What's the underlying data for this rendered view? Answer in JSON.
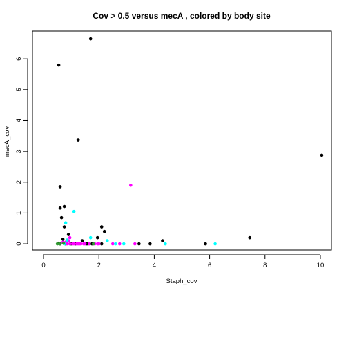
{
  "chart_data": {
    "type": "scatter",
    "title": "Cov > 0.5 versus mecA , colored by body site",
    "xlabel": "Staph_cov",
    "ylabel": "mecA_cov",
    "xlim": [
      -0.4,
      10.4
    ],
    "ylim": [
      -0.2,
      6.9
    ],
    "xticks": [
      0,
      2,
      4,
      6,
      8,
      10
    ],
    "yticks": [
      0,
      1,
      2,
      3,
      4,
      5,
      6
    ],
    "xtick_labels": [
      "0",
      "2",
      "4",
      "6",
      "8",
      "10"
    ],
    "ytick_labels": [
      "0",
      "1",
      "2",
      "3",
      "4",
      "5",
      "6"
    ],
    "grid": false,
    "colors": {
      "black": "#000000",
      "magenta": "#ff00ff",
      "cyan": "#00ffff",
      "green": "#339933"
    },
    "series": [
      {
        "color": "#000000",
        "points": [
          [
            1.7,
            6.65
          ],
          [
            0.55,
            5.8
          ],
          [
            1.25,
            3.37
          ],
          [
            10.05,
            2.87
          ],
          [
            0.6,
            1.85
          ],
          [
            0.75,
            1.21
          ],
          [
            0.6,
            1.16
          ],
          [
            0.65,
            0.85
          ],
          [
            0.75,
            0.55
          ],
          [
            2.1,
            0.55
          ],
          [
            2.2,
            0.4
          ],
          [
            0.9,
            0.3
          ],
          [
            1.95,
            0.2
          ],
          [
            7.45,
            0.2
          ],
          [
            0.7,
            0.15
          ],
          [
            0.85,
            0.12
          ],
          [
            1.4,
            0.1
          ],
          [
            4.3,
            0.1
          ],
          [
            0.55,
            0.02
          ],
          [
            0.6,
            0.0
          ],
          [
            0.8,
            0.0
          ],
          [
            1.0,
            0.0
          ],
          [
            1.15,
            0.0
          ],
          [
            1.55,
            0.0
          ],
          [
            1.6,
            0.0
          ],
          [
            1.75,
            0.0
          ],
          [
            2.1,
            0.0
          ],
          [
            3.45,
            0.0
          ],
          [
            3.85,
            0.0
          ],
          [
            5.85,
            0.0
          ]
        ]
      },
      {
        "color": "#ff00ff",
        "points": [
          [
            3.15,
            1.9
          ],
          [
            0.95,
            0.2
          ],
          [
            0.9,
            0.1
          ],
          [
            0.7,
            0.05
          ],
          [
            0.8,
            0.05
          ],
          [
            0.95,
            0.0
          ],
          [
            1.05,
            0.0
          ],
          [
            1.1,
            0.0
          ],
          [
            1.2,
            0.0
          ],
          [
            1.3,
            0.0
          ],
          [
            1.35,
            0.0
          ],
          [
            1.45,
            0.0
          ],
          [
            1.5,
            0.0
          ],
          [
            1.65,
            0.0
          ],
          [
            1.85,
            0.0
          ],
          [
            1.95,
            0.0
          ],
          [
            2.0,
            0.0
          ],
          [
            2.5,
            0.0
          ],
          [
            2.75,
            0.0
          ],
          [
            3.3,
            0.0
          ],
          [
            0.85,
            0.0
          ],
          [
            1.25,
            0.0
          ]
        ]
      },
      {
        "color": "#00ffff",
        "points": [
          [
            1.1,
            1.05
          ],
          [
            0.8,
            0.68
          ],
          [
            0.85,
            0.12
          ],
          [
            1.7,
            0.2
          ],
          [
            2.3,
            0.1
          ],
          [
            2.6,
            0.0
          ],
          [
            2.9,
            0.0
          ],
          [
            4.4,
            0.0
          ],
          [
            6.2,
            0.0
          ],
          [
            0.75,
            0.0
          ]
        ]
      },
      {
        "color": "#339933",
        "points": [
          [
            0.5,
            0.0
          ],
          [
            0.58,
            0.0
          ],
          [
            0.72,
            0.02
          ],
          [
            1.8,
            0.0
          ]
        ]
      }
    ]
  }
}
